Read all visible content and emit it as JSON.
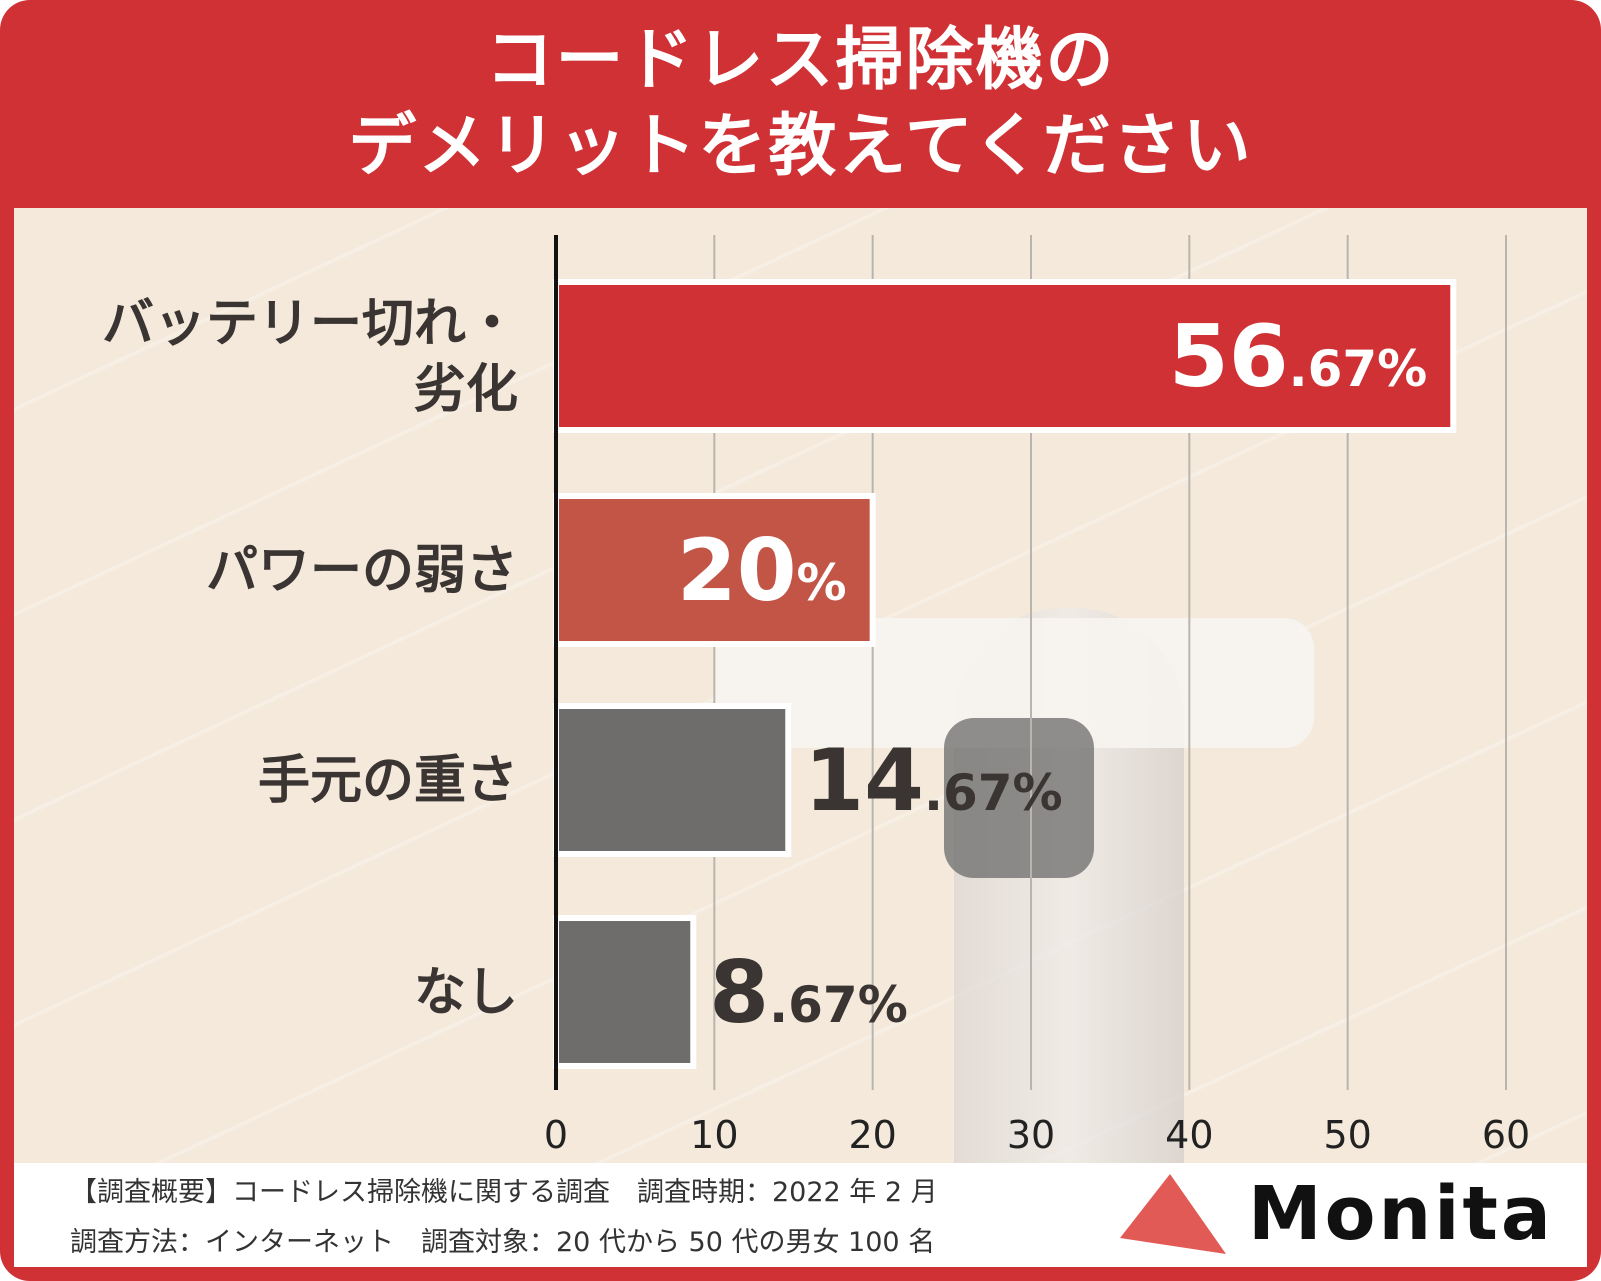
{
  "title": {
    "line1": "コードレス掃除機の",
    "line2": "デメリットを教えてください"
  },
  "chart_data": {
    "type": "bar",
    "orientation": "horizontal",
    "title": "コードレス掃除機のデメリットを教えてください",
    "categories": [
      [
        "バッテリー切れ・",
        "劣化"
      ],
      [
        "パワーの弱さ"
      ],
      [
        "手元の重さ"
      ],
      [
        "なし"
      ]
    ],
    "values": [
      56.67,
      20,
      14.67,
      8.67
    ],
    "value_labels": [
      {
        "int": "56",
        "dec": ".67",
        "unit": "%"
      },
      {
        "int": "20",
        "dec": "",
        "unit": "%"
      },
      {
        "int": "14",
        "dec": ".67",
        "unit": "%"
      },
      {
        "int": "8",
        "dec": ".67",
        "unit": "%"
      }
    ],
    "bar_colors": [
      "#d03135",
      "#c25545",
      "#6f6c6c",
      "#6f6c6c"
    ],
    "label_inside": [
      true,
      true,
      false,
      false
    ],
    "xlim": [
      0,
      60
    ],
    "xticks": [
      0,
      10,
      20,
      30,
      40,
      50,
      60
    ],
    "grid": true
  },
  "footer": {
    "line1": "【調査概要】コードレス掃除機に関する調査　調査時期：2022 年 2 月",
    "line2": "調査方法：インターネット　調査対象：20 代から 50 代の男女 100 名"
  },
  "logo": {
    "text": "Monita",
    "color": "#e25a55"
  }
}
